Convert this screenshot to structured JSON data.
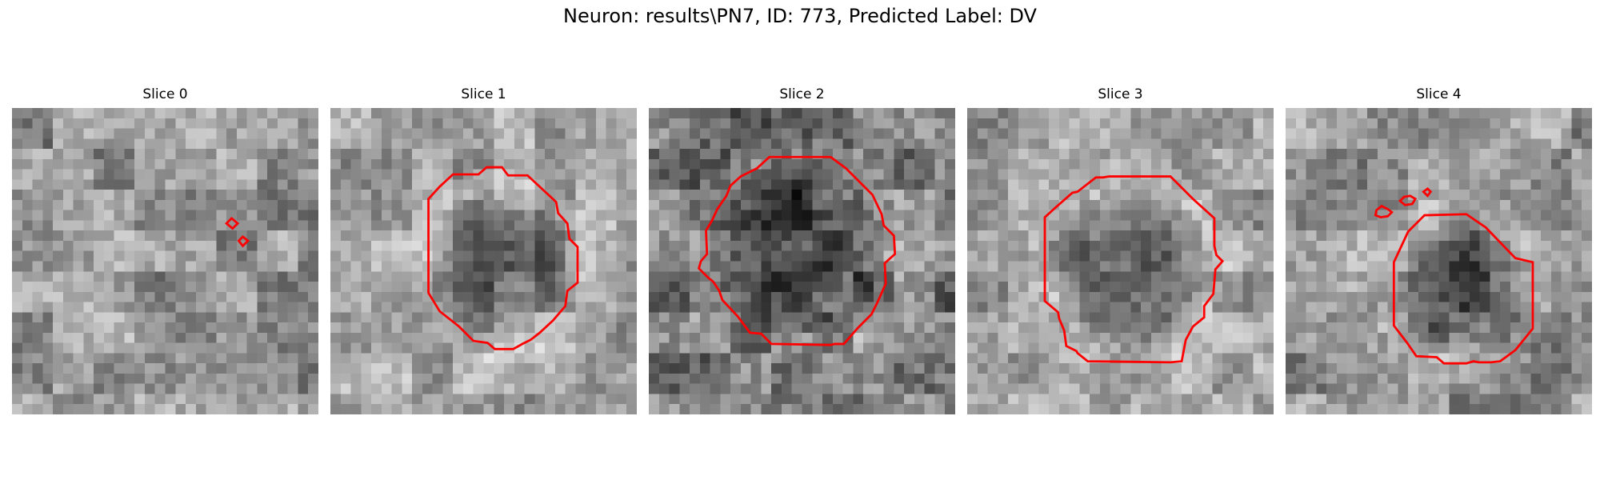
{
  "figure": {
    "title": "Neuron: results\\PN7, ID: 773, Predicted Label: DV"
  },
  "slices": [
    {
      "title": "Slice 0",
      "seed": 11,
      "base": 150,
      "contrast": 60,
      "dark_center": false
    },
    {
      "title": "Slice 1",
      "seed": 23,
      "base": 165,
      "contrast": 55,
      "dark_center": true
    },
    {
      "title": "Slice 2",
      "seed": 37,
      "base": 120,
      "contrast": 70,
      "dark_center": true
    },
    {
      "title": "Slice 3",
      "seed": 41,
      "base": 160,
      "contrast": 55,
      "dark_center": true
    },
    {
      "title": "Slice 4",
      "seed": 53,
      "base": 150,
      "contrast": 60,
      "dark_center": true
    }
  ],
  "colors": {
    "contour": "#ff0000"
  }
}
